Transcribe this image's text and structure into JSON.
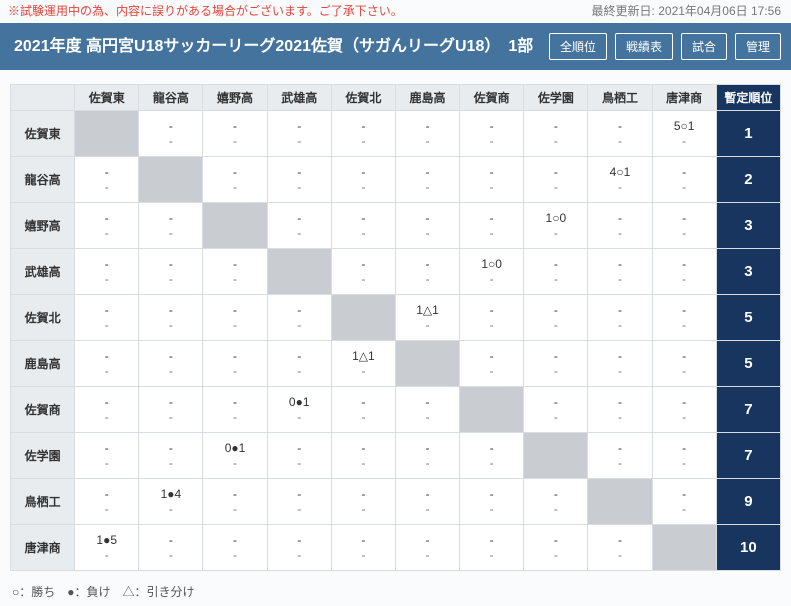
{
  "top": {
    "warning": "※試験運用中の為、内容に誤りがある場合がございます。ご了承下さい。",
    "updated_label": "最終更新日:",
    "updated_value": "2021年04月06日 17:56"
  },
  "header": {
    "title": "2021年度 高円宮U18サッカーリーグ2021佐賀（サガんリーグU18）　1部",
    "buttons": {
      "all_rank": "全順位",
      "results": "戦績表",
      "matches": "試合",
      "admin": "管理"
    }
  },
  "table": {
    "rank_header": "暫定順位",
    "teams": [
      "佐賀東",
      "龍谷高",
      "嬉野高",
      "武雄高",
      "佐賀北",
      "鹿島高",
      "佐賀商",
      "佐学園",
      "鳥栖工",
      "唐津商"
    ],
    "cells": {
      "0-9": "5○1",
      "1-8": "4○1",
      "2-7": "1○0",
      "3-6": "1○0",
      "4-5": "1△1",
      "5-4": "1△1",
      "6-3": "0●1",
      "7-2": "0●1",
      "8-1": "1●4",
      "9-0": "1●5"
    },
    "ranks": [
      "1",
      "2",
      "3",
      "3",
      "5",
      "5",
      "7",
      "7",
      "9",
      "10"
    ]
  },
  "legend": "○：勝ち　●：負け　△：引き分け"
}
